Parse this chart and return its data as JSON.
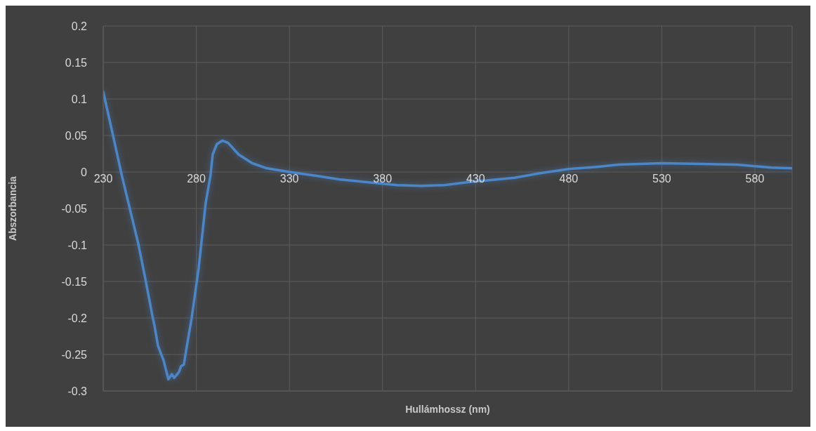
{
  "chart_data": {
    "type": "line",
    "xlabel": "Hullámhossz (nm)",
    "ylabel": "Abszorbancia",
    "color": "#4a86c8",
    "x": [
      230,
      235,
      240,
      248.8,
      252.6,
      256.4,
      257.5,
      259.4,
      262.4,
      265,
      266.9,
      268.1,
      270.7,
      271.8,
      273.3,
      274.5,
      277.5,
      281.2,
      285,
      287.6,
      288.8,
      291,
      294,
      297,
      302.7,
      310,
      318,
      330,
      344,
      356.6,
      375.4,
      388,
      400.7,
      413,
      426,
      438,
      451,
      464,
      480,
      495,
      507,
      530,
      551,
      570,
      580,
      589,
      600
    ],
    "values": [
      0.11,
      0.053,
      -0.005,
      -0.098,
      -0.146,
      -0.197,
      -0.21,
      -0.238,
      -0.258,
      -0.284,
      -0.277,
      -0.282,
      -0.274,
      -0.266,
      -0.264,
      -0.245,
      -0.2,
      -0.133,
      -0.043,
      -0.005,
      0.024,
      0.038,
      0.043,
      0.04,
      0.024,
      0.012,
      0.005,
      0,
      -0.005,
      -0.01,
      -0.015,
      -0.018,
      -0.019,
      -0.018,
      -0.014,
      -0.011,
      -0.008,
      -0.002,
      0.004,
      0.007,
      0.01,
      0.012,
      0.011,
      0.01,
      0.008,
      0.006,
      0.005
    ],
    "xlim": [
      230,
      600
    ],
    "ylim": [
      -0.3,
      0.2
    ],
    "xticks": [
      230,
      280,
      330,
      380,
      430,
      480,
      530,
      580
    ],
    "yticks": [
      -0.3,
      -0.25,
      -0.2,
      -0.15,
      -0.1,
      -0.05,
      0,
      0.05,
      0.1,
      0.15,
      0.2
    ],
    "grid": true
  }
}
